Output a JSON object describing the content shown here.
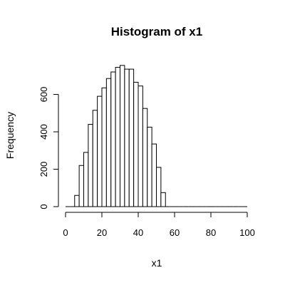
{
  "chart_data": {
    "type": "bar",
    "title": "Histogram of x1",
    "xlabel": "x1",
    "ylabel": "Frequency",
    "xlim": [
      0,
      100
    ],
    "ylim": [
      0,
      700
    ],
    "x_ticks": [
      "0",
      "20",
      "40",
      "60",
      "80",
      "100"
    ],
    "y_ticks": [
      "0",
      "200",
      "400",
      "600"
    ],
    "bin_width": 2.5,
    "bin_start": 0,
    "values": [
      0,
      0,
      60,
      220,
      290,
      440,
      515,
      590,
      635,
      685,
      720,
      745,
      755,
      735,
      735,
      665,
      645,
      525,
      425,
      335,
      210,
      75,
      0,
      0,
      0,
      0,
      0,
      0,
      0,
      0,
      0,
      0,
      0,
      0,
      0,
      0,
      0,
      0,
      0,
      0
    ]
  }
}
